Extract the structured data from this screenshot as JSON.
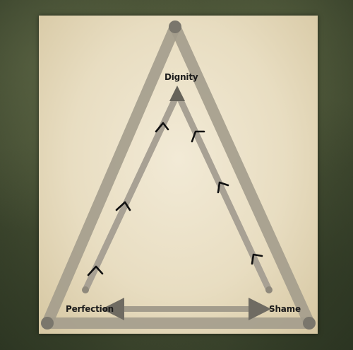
{
  "labels": {
    "top": "Dignity",
    "left": "Perfection",
    "right": "Shame"
  },
  "colors": {
    "background": "#485135",
    "paper": "#ece3cc",
    "band": "#a39c8c",
    "node": "#7a766c",
    "marker": "#111111"
  }
}
